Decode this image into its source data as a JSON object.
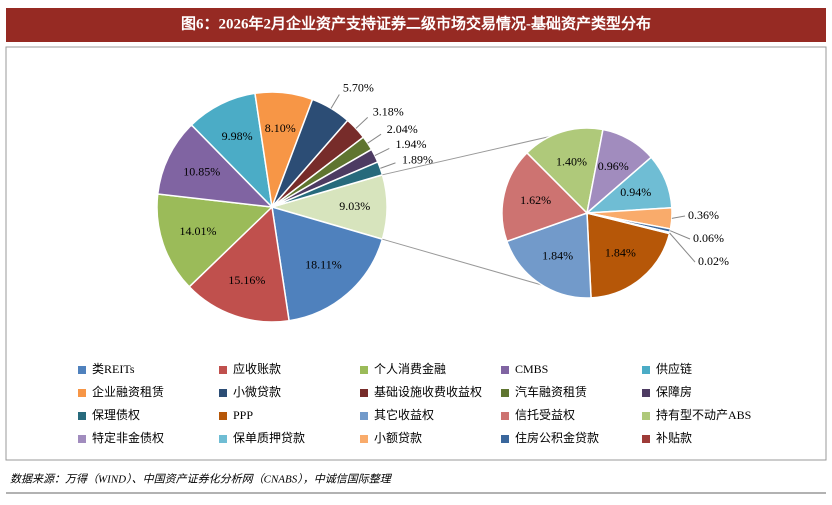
{
  "chart_data": {
    "type": "pie_of_pie",
    "title": "图6：2026年2月企业资产支持证券二级市场交易情况-基础资产类型分布",
    "main": [
      {
        "name": "类REITs",
        "color": "#4f81bd",
        "value": 18.11,
        "value_label": "18.11%"
      },
      {
        "name": "应收账款",
        "color": "#c0504d",
        "value": 15.16,
        "value_label": "15.16%"
      },
      {
        "name": "个人消费金融",
        "color": "#9bbb59",
        "value": 14.01,
        "value_label": "14.01%"
      },
      {
        "name": "CMBS",
        "color": "#8064a2",
        "value": 10.85,
        "value_label": "10.85%"
      },
      {
        "name": "供应链",
        "color": "#4bacc6",
        "value": 9.98,
        "value_label": "9.98%"
      },
      {
        "name": "企业融资租赁",
        "color": "#f79646",
        "value": 8.1,
        "value_label": "8.10%"
      },
      {
        "name": "小微贷款",
        "color": "#2c4d75",
        "value": 5.7,
        "value_label": "5.70%"
      },
      {
        "name": "基础设施收费收益权",
        "color": "#772c2a",
        "value": 3.18,
        "value_label": "3.18%"
      },
      {
        "name": "汽车融资租赁",
        "color": "#5f7530",
        "value": 2.04,
        "value_label": "2.04%"
      },
      {
        "name": "保障房",
        "color": "#4d3b62",
        "value": 1.94,
        "value_label": "1.94%"
      },
      {
        "name": "保理债权",
        "color": "#276a7c",
        "value": 1.89,
        "value_label": "1.89%"
      }
    ],
    "other": {
      "color": "#d7e4bd",
      "value": 9.03,
      "value_label": "9.03%"
    },
    "secondary": [
      {
        "name": "PPP",
        "color": "#b65708",
        "value": 1.84,
        "value_label": "1.84%"
      },
      {
        "name": "其它收益权",
        "color": "#729aca",
        "value": 1.84,
        "value_label": "1.84%"
      },
      {
        "name": "信托受益权",
        "color": "#cd7371",
        "value": 1.62,
        "value_label": "1.62%"
      },
      {
        "name": "持有型不动产ABS",
        "color": "#afc97a",
        "value": 1.4,
        "value_label": "1.40%"
      },
      {
        "name": "特定非金债权",
        "color": "#a18cbe",
        "value": 0.96,
        "value_label": "0.96%"
      },
      {
        "name": "保单质押贷款",
        "color": "#6fbdd4",
        "value": 0.94,
        "value_label": "0.94%"
      },
      {
        "name": "小额贷款",
        "color": "#f9ab6b",
        "value": 0.36,
        "value_label": "0.36%"
      },
      {
        "name": "住房公积金贷款",
        "color": "#3a679c",
        "value": 0.06,
        "value_label": "0.06%"
      },
      {
        "name": "补贴款",
        "color": "#9e3b38",
        "value": 0.02,
        "value_label": "0.02%"
      }
    ]
  },
  "source": "数据来源：万得（WIND）、中国资产证券化分析网（CNABS），中诚信国际整理"
}
